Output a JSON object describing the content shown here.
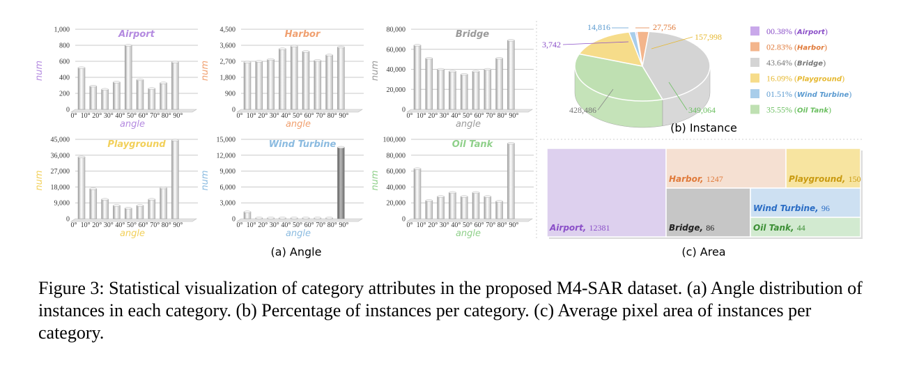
{
  "angle_panel": {
    "label": "(a) Angle",
    "categories": [
      "0°",
      "10°",
      "20°",
      "30°",
      "40°",
      "50°",
      "60°",
      "70°",
      "80°",
      "90°"
    ]
  },
  "instance_panel": {
    "label": "(b) Instance"
  },
  "area_panel": {
    "label": "(c) Area"
  },
  "caption": "Figure 3: Statistical visualization of category attributes in the proposed M4-SAR dataset. (a) Angle distribution of instances in each category. (b) Percentage of instances per category. (c) Average pixel area of instances per category.",
  "chart_data": [
    {
      "type": "bar",
      "title": "Airport",
      "title_color": "#b48ae0",
      "xlabel": "angle",
      "ylabel": "num",
      "label_color": "#b48ae0",
      "categories": [
        "0°",
        "10°",
        "20°",
        "30°",
        "40°",
        "50°",
        "60°",
        "70°",
        "80°",
        "90°"
      ],
      "values": [
        520,
        290,
        250,
        340,
        800,
        370,
        260,
        330,
        590,
        0
      ],
      "ylim": [
        0,
        1000
      ],
      "yticks": [
        "0",
        "200",
        "400",
        "600",
        "800",
        "1,000"
      ]
    },
    {
      "type": "bar",
      "title": "Harbor",
      "title_color": "#f0a070",
      "xlabel": "angle",
      "ylabel": "num",
      "label_color": "#f0a070",
      "categories": [
        "0°",
        "10°",
        "20°",
        "30°",
        "40°",
        "50°",
        "60°",
        "70°",
        "80°",
        "90°"
      ],
      "values": [
        2650,
        2700,
        2800,
        3400,
        3550,
        3250,
        2750,
        3050,
        3500,
        0
      ],
      "ylim": [
        0,
        4500
      ],
      "yticks": [
        "0",
        "900",
        "1,800",
        "2,700",
        "3,600",
        "4,500"
      ]
    },
    {
      "type": "bar",
      "title": "Bridge",
      "title_color": "#9a9a9a",
      "xlabel": "angle",
      "ylabel": "num",
      "label_color": "#9a9a9a",
      "categories": [
        "0°",
        "10°",
        "20°",
        "30°",
        "40°",
        "50°",
        "60°",
        "70°",
        "80°",
        "90°"
      ],
      "values": [
        64000,
        51000,
        40000,
        38000,
        35000,
        38000,
        40000,
        51000,
        69000,
        0
      ],
      "ylim": [
        0,
        80000
      ],
      "yticks": [
        "0",
        "20,000",
        "40,000",
        "60,000",
        "80,000"
      ]
    },
    {
      "type": "bar",
      "title": "Playground",
      "title_color": "#f2d05a",
      "xlabel": "angle",
      "ylabel": "num",
      "label_color": "#f2d05a",
      "categories": [
        "0°",
        "10°",
        "20°",
        "30°",
        "40°",
        "50°",
        "60°",
        "70°",
        "80°",
        "90°"
      ],
      "values": [
        35000,
        17000,
        11000,
        7500,
        6000,
        7500,
        11000,
        17500,
        44500,
        0
      ],
      "ylim": [
        0,
        45000
      ],
      "yticks": [
        "0",
        "9,000",
        "18,000",
        "27,000",
        "36,000",
        "45,000"
      ]
    },
    {
      "type": "bar",
      "title": "Wind Turbine",
      "title_color": "#8bbbe0",
      "xlabel": "angle",
      "ylabel": "num",
      "label_color": "#8bbbe0",
      "categories": [
        "0°",
        "10°",
        "20°",
        "30°",
        "40°",
        "50°",
        "60°",
        "70°",
        "80°",
        "90°"
      ],
      "values": [
        1300,
        150,
        150,
        150,
        150,
        150,
        150,
        150,
        13500,
        0
      ],
      "ylim": [
        0,
        15000
      ],
      "yticks": [
        "0",
        "3,000",
        "6,000",
        "9,000",
        "12,000",
        "15,000"
      ]
    },
    {
      "type": "bar",
      "title": "Oil Tank",
      "title_color": "#8fd08a",
      "xlabel": "angle",
      "ylabel": "num",
      "label_color": "#8fd08a",
      "categories": [
        "0°",
        "10°",
        "20°",
        "30°",
        "40°",
        "50°",
        "60°",
        "70°",
        "80°",
        "90°"
      ],
      "values": [
        63000,
        23000,
        28000,
        33000,
        28000,
        33000,
        28000,
        22000,
        95000,
        0
      ],
      "ylim": [
        0,
        100000
      ],
      "yticks": [
        "0",
        "20,000",
        "40,000",
        "60,000",
        "80,000",
        "100,000"
      ]
    },
    {
      "type": "pie",
      "title": "",
      "slices": [
        {
          "label": "Airport",
          "percent_text": "00.38%",
          "percent": 0.38,
          "count": "3,742",
          "color": "#c9a8ea",
          "text_color": "#8a4fc8"
        },
        {
          "label": "Harbor",
          "percent_text": "02.83%",
          "percent": 2.83,
          "count": "27,756",
          "color": "#f3b58c",
          "text_color": "#e07a3a"
        },
        {
          "label": "Bridge",
          "percent_text": "43.64%",
          "percent": 43.64,
          "count": "428,486",
          "color": "#d4d4d4",
          "text_color": "#777777"
        },
        {
          "label": "Playground",
          "percent_text": "16.09%",
          "percent": 16.09,
          "count": "157,998",
          "color": "#f6dc8a",
          "text_color": "#e6b830"
        },
        {
          "label": "Wind Turbine",
          "percent_text": "01.51%",
          "percent": 1.51,
          "count": "14,816",
          "color": "#a8cdea",
          "text_color": "#5a9ad0"
        },
        {
          "label": "Oil Tank",
          "percent_text": "35.55%",
          "percent": 35.55,
          "count": "349,064",
          "color": "#bfe0b2",
          "text_color": "#6bbf60"
        }
      ]
    },
    {
      "type": "treemap",
      "title": "",
      "items": [
        {
          "label": "Airport",
          "value": 12381,
          "value_text": "12381",
          "color": "#ddd0ee",
          "text_color": "#8a4fc8"
        },
        {
          "label": "Harbor",
          "value": 1247,
          "value_text": "1247",
          "color": "#f5e0d2",
          "text_color": "#e07a3a"
        },
        {
          "label": "Playground",
          "value": 150,
          "value_text": "150",
          "color": "#f7e4a0",
          "text_color": "#c99a10"
        },
        {
          "label": "Bridge",
          "value": 86,
          "value_text": "86",
          "color": "#c6c6c6",
          "text_color": "#222222"
        },
        {
          "label": "Wind Turbine",
          "value": 96,
          "value_text": "96",
          "color": "#cde0f2",
          "text_color": "#2a6cc4"
        },
        {
          "label": "Oil Tank",
          "value": 44,
          "value_text": "44",
          "color": "#d2ead0",
          "text_color": "#3c8f35"
        }
      ]
    }
  ]
}
